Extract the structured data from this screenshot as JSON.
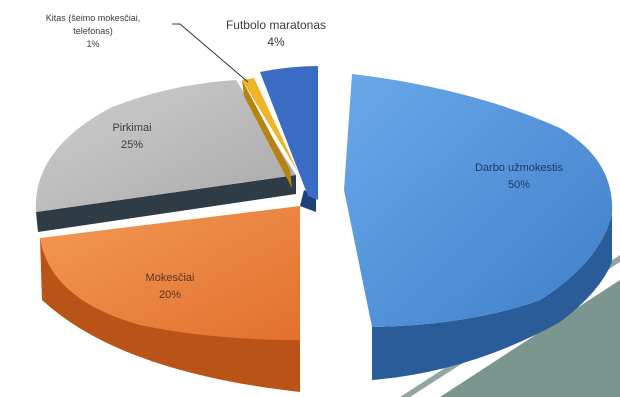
{
  "chart_data": {
    "type": "pie",
    "style": "3d-exploded",
    "slices": [
      {
        "label": "Darbo užmokestis",
        "value": 50,
        "percent_label": "50%",
        "color": "#4f8fd6"
      },
      {
        "label": "Mokesčiai",
        "value": 20,
        "percent_label": "20%",
        "color": "#ee7f3a"
      },
      {
        "label": "Pirkimai",
        "value": 25,
        "percent_label": "25%",
        "color": "#b9b9b9"
      },
      {
        "label": "Kitas (šeimo mokesčiai, telefonas)",
        "value": 1,
        "percent_label": "1%",
        "color": "#f0b42a"
      },
      {
        "label": "Futbolo maratonas",
        "value": 4,
        "percent_label": "4%",
        "color": "#3b6cc4"
      }
    ],
    "legend": "none",
    "title": ""
  },
  "labels": {
    "other_line1": "Kitas (šeimo mokesčiai,",
    "other_line2": "telefonas)",
    "other_pct": "1%",
    "foot_name": "Futbolo maratonas",
    "foot_pct": "4%",
    "salary_name": "Darbo užmokestis",
    "salary_pct": "50%",
    "purchases_name": "Pirkimai",
    "purchases_pct": "25%",
    "taxes_name": "Mokesčiai",
    "taxes_pct": "20%"
  },
  "decor": {
    "corner_color": "#7b968e"
  }
}
